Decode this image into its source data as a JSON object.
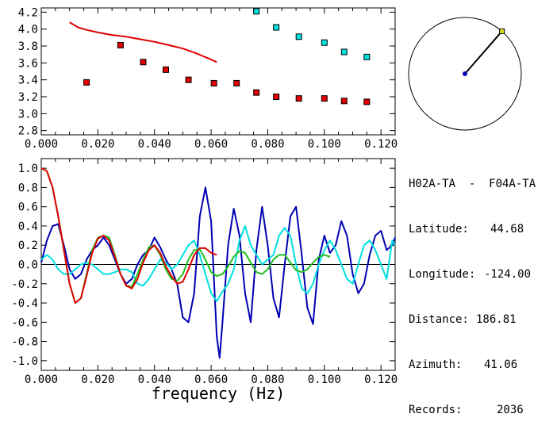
{
  "station_pair": "H02A-TA  -  F04A-TA",
  "info": [
    {
      "label": "Latitude:",
      "value": "44.68"
    },
    {
      "label": "Longitude:",
      "value": "-124.00"
    },
    {
      "label": "Distance:",
      "value": "186.81"
    },
    {
      "label": "Azimuth:",
      "value": "41.06"
    },
    {
      "label": "Records:",
      "value": "2036"
    }
  ],
  "colors": {
    "red": "#e00000",
    "blue": "#0000b4",
    "cyan": "#00e0e0",
    "green": "#20c020",
    "black": "#000000"
  },
  "chart_data": [
    {
      "type": "scatter",
      "panel": "dispersion",
      "xlim": [
        0.0,
        0.125
      ],
      "ylim": [
        2.75,
        4.25
      ],
      "x_ticks": [
        "0.000",
        "0.020",
        "0.040",
        "0.060",
        "0.080",
        "0.100",
        "0.120"
      ],
      "y_ticks": [
        "2.8",
        "3.0",
        "3.2",
        "3.4",
        "3.6",
        "3.8",
        "4.0",
        "4.2"
      ],
      "series": [
        {
          "color": "red",
          "style": "line",
          "x": [
            0.01,
            0.013,
            0.016,
            0.02,
            0.025,
            0.03,
            0.035,
            0.04,
            0.045,
            0.05,
            0.055,
            0.06,
            0.062
          ],
          "y": [
            4.08,
            4.02,
            3.99,
            3.96,
            3.93,
            3.91,
            3.88,
            3.85,
            3.81,
            3.77,
            3.71,
            3.64,
            3.61
          ]
        },
        {
          "color": "red",
          "style": "points",
          "x": [
            0.016,
            0.028,
            0.036,
            0.044,
            0.052,
            0.061,
            0.069,
            0.076,
            0.083,
            0.091,
            0.1,
            0.107,
            0.115
          ],
          "y": [
            3.37,
            3.81,
            3.61,
            3.52,
            3.4,
            3.36,
            3.36,
            3.25,
            3.2,
            3.18,
            3.18,
            3.15,
            3.14
          ]
        },
        {
          "color": "cyan",
          "style": "points",
          "x": [
            0.076,
            0.083,
            0.091,
            0.1,
            0.107,
            0.115
          ],
          "y": [
            4.21,
            4.02,
            3.91,
            3.84,
            3.73,
            3.67
          ]
        }
      ]
    },
    {
      "type": "line",
      "panel": "coherence",
      "xlabel": "frequency (Hz)",
      "xlim": [
        0.0,
        0.125
      ],
      "ylim": [
        -1.1,
        1.1
      ],
      "x_ticks": [
        "0.000",
        "0.020",
        "0.040",
        "0.060",
        "0.080",
        "0.100",
        "0.120"
      ],
      "y_ticks": [
        "1.0",
        "0.8",
        "0.6",
        "0.4",
        "0.2",
        "0.0",
        "-0.2",
        "-0.4",
        "-0.6",
        "-0.8",
        "-1.0"
      ],
      "series": [
        {
          "color": "blue",
          "x": [
            0.0,
            0.002,
            0.004,
            0.006,
            0.008,
            0.01,
            0.012,
            0.014,
            0.016,
            0.018,
            0.02,
            0.022,
            0.024,
            0.026,
            0.028,
            0.03,
            0.032,
            0.034,
            0.036,
            0.038,
            0.04,
            0.042,
            0.044,
            0.046,
            0.048,
            0.05,
            0.052,
            0.054,
            0.056,
            0.058,
            0.06,
            0.062,
            0.063,
            0.064,
            0.066,
            0.068,
            0.07,
            0.072,
            0.074,
            0.076,
            0.078,
            0.08,
            0.082,
            0.084,
            0.086,
            0.088,
            0.09,
            0.092,
            0.094,
            0.096,
            0.098,
            0.1,
            0.102,
            0.104,
            0.106,
            0.108,
            0.11,
            0.112,
            0.114,
            0.116,
            0.118,
            0.12,
            0.122,
            0.124,
            0.125
          ],
          "y": [
            0.02,
            0.25,
            0.4,
            0.42,
            0.2,
            -0.05,
            -0.15,
            -0.1,
            0.05,
            0.15,
            0.2,
            0.28,
            0.2,
            0.05,
            -0.1,
            -0.2,
            -0.15,
            0.0,
            0.1,
            0.15,
            0.28,
            0.18,
            0.05,
            -0.05,
            -0.2,
            -0.55,
            -0.6,
            -0.3,
            0.5,
            0.8,
            0.45,
            -0.75,
            -0.97,
            -0.6,
            0.2,
            0.58,
            0.3,
            -0.3,
            -0.6,
            0.15,
            0.6,
            0.2,
            -0.35,
            -0.55,
            0.0,
            0.5,
            0.6,
            0.1,
            -0.45,
            -0.62,
            0.05,
            0.3,
            0.12,
            0.2,
            0.45,
            0.3,
            -0.1,
            -0.3,
            -0.2,
            0.1,
            0.3,
            0.35,
            0.15,
            0.2,
            0.28
          ]
        },
        {
          "color": "cyan",
          "x": [
            0.0,
            0.002,
            0.004,
            0.006,
            0.008,
            0.01,
            0.012,
            0.014,
            0.016,
            0.018,
            0.02,
            0.022,
            0.024,
            0.026,
            0.028,
            0.03,
            0.032,
            0.034,
            0.036,
            0.038,
            0.04,
            0.042,
            0.044,
            0.046,
            0.048,
            0.05,
            0.052,
            0.054,
            0.056,
            0.058,
            0.06,
            0.062,
            0.064,
            0.066,
            0.068,
            0.07,
            0.072,
            0.074,
            0.076,
            0.078,
            0.08,
            0.082,
            0.084,
            0.086,
            0.088,
            0.09,
            0.092,
            0.094,
            0.096,
            0.098,
            0.1,
            0.102,
            0.104,
            0.106,
            0.108,
            0.11,
            0.112,
            0.114,
            0.116,
            0.118,
            0.12,
            0.122,
            0.124,
            0.125
          ],
          "y": [
            0.05,
            0.1,
            0.05,
            -0.05,
            -0.1,
            -0.1,
            -0.05,
            0.0,
            0.02,
            0.0,
            -0.05,
            -0.1,
            -0.1,
            -0.08,
            -0.05,
            -0.05,
            -0.08,
            -0.2,
            -0.22,
            -0.15,
            -0.05,
            0.05,
            0.02,
            -0.05,
            0.0,
            0.1,
            0.2,
            0.25,
            0.1,
            -0.1,
            -0.3,
            -0.38,
            -0.28,
            -0.2,
            -0.05,
            0.25,
            0.4,
            0.2,
            0.1,
            0.0,
            0.05,
            0.1,
            0.3,
            0.38,
            0.3,
            0.0,
            -0.25,
            -0.3,
            -0.2,
            0.0,
            0.15,
            0.25,
            0.15,
            0.0,
            -0.15,
            -0.2,
            0.0,
            0.2,
            0.25,
            0.15,
            0.0,
            -0.15,
            0.25,
            0.2
          ]
        },
        {
          "color": "green",
          "x": [
            0.0,
            0.002,
            0.004,
            0.006,
            0.008,
            0.01,
            0.012,
            0.014,
            0.016,
            0.018,
            0.02,
            0.022,
            0.024,
            0.026,
            0.028,
            0.03,
            0.032,
            0.034,
            0.036,
            0.038,
            0.04,
            0.042,
            0.044,
            0.046,
            0.048,
            0.05,
            0.052,
            0.054,
            0.056,
            0.058,
            0.06,
            0.062,
            0.064,
            0.066,
            0.068,
            0.07,
            0.072,
            0.074,
            0.076,
            0.078,
            0.08,
            0.082,
            0.084,
            0.086,
            0.088,
            0.09,
            0.092,
            0.094,
            0.096,
            0.098,
            0.1,
            0.102
          ],
          "y": [
            1.0,
            0.97,
            0.8,
            0.5,
            0.15,
            -0.2,
            -0.4,
            -0.35,
            -0.1,
            0.15,
            0.28,
            0.3,
            0.28,
            0.1,
            -0.1,
            -0.22,
            -0.23,
            -0.1,
            0.05,
            0.18,
            0.2,
            0.1,
            -0.05,
            -0.15,
            -0.17,
            -0.1,
            0.05,
            0.15,
            0.16,
            0.05,
            -0.08,
            -0.12,
            -0.1,
            -0.02,
            0.08,
            0.14,
            0.12,
            0.02,
            -0.08,
            -0.1,
            -0.05,
            0.05,
            0.1,
            0.1,
            0.02,
            -0.06,
            -0.08,
            -0.05,
            0.02,
            0.08,
            0.1,
            0.08
          ]
        },
        {
          "color": "red",
          "x": [
            0.0,
            0.002,
            0.004,
            0.006,
            0.008,
            0.01,
            0.012,
            0.014,
            0.016,
            0.018,
            0.02,
            0.022,
            0.024,
            0.026,
            0.028,
            0.03,
            0.032,
            0.034,
            0.036,
            0.038,
            0.04,
            0.042,
            0.044,
            0.046,
            0.048,
            0.05,
            0.052,
            0.054,
            0.056,
            0.058,
            0.06,
            0.062
          ],
          "y": [
            1.0,
            0.97,
            0.8,
            0.5,
            0.15,
            -0.2,
            -0.4,
            -0.35,
            -0.12,
            0.12,
            0.27,
            0.3,
            0.25,
            0.08,
            -0.1,
            -0.22,
            -0.25,
            -0.15,
            0.02,
            0.15,
            0.2,
            0.12,
            -0.02,
            -0.12,
            -0.2,
            -0.18,
            -0.05,
            0.1,
            0.17,
            0.17,
            0.12,
            0.1
          ]
        }
      ]
    },
    {
      "type": "scatter",
      "panel": "azimuth",
      "azimuth_deg": 41.06,
      "series": [
        {
          "color": "blue",
          "style": "center"
        },
        {
          "color": "yellow",
          "style": "endpoint"
        }
      ]
    }
  ]
}
